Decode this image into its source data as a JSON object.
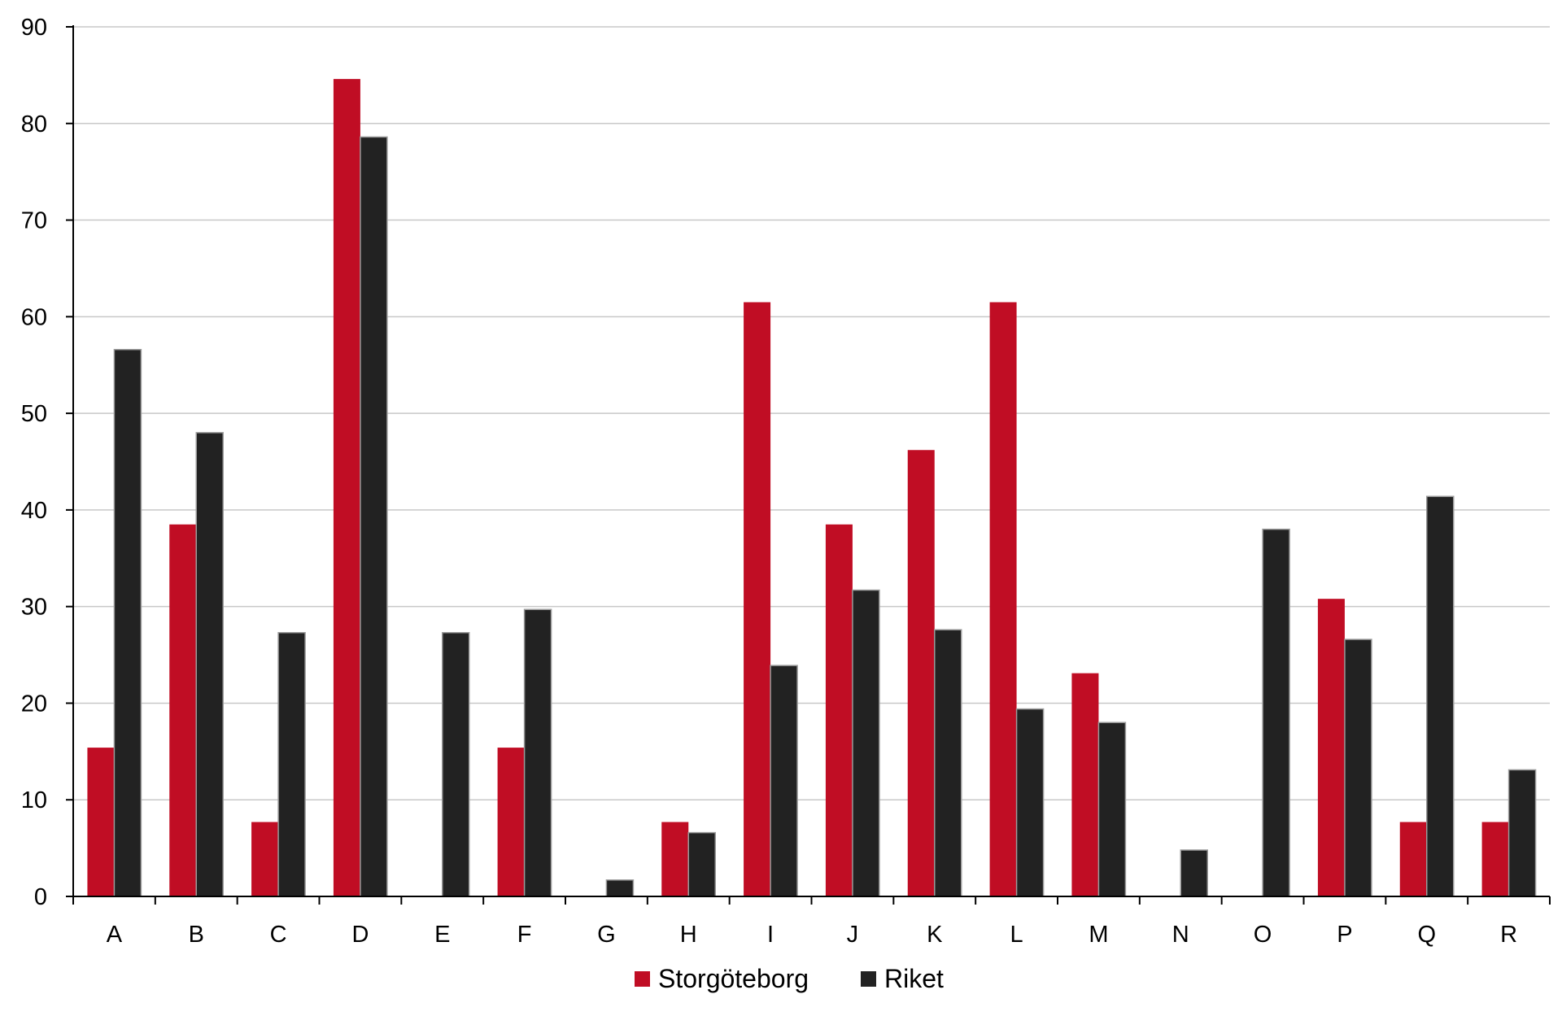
{
  "chart_data": {
    "type": "bar",
    "title": "",
    "xlabel": "",
    "ylabel": "",
    "ylim": [
      0,
      90
    ],
    "yticks": [
      0,
      10,
      20,
      30,
      40,
      50,
      60,
      70,
      80,
      90
    ],
    "grid": true,
    "legend_position": "bottom-center",
    "categories": [
      "A",
      "B",
      "C",
      "D",
      "E",
      "F",
      "G",
      "H",
      "I",
      "J",
      "K",
      "L",
      "M",
      "N",
      "O",
      "P",
      "Q",
      "R"
    ],
    "series": [
      {
        "name": "Storgöteborg",
        "color": "#c00d24",
        "values": [
          15.4,
          38.5,
          7.7,
          84.6,
          0,
          15.4,
          0,
          7.7,
          61.5,
          38.5,
          46.2,
          61.5,
          23.1,
          0,
          0,
          30.8,
          7.7,
          7.7
        ]
      },
      {
        "name": "Riket",
        "color": "#222222",
        "values": [
          56.6,
          48.0,
          27.3,
          78.6,
          27.3,
          29.7,
          1.7,
          6.6,
          23.9,
          31.7,
          27.6,
          19.4,
          18.0,
          4.8,
          38.0,
          26.6,
          41.4,
          13.1
        ]
      }
    ]
  }
}
